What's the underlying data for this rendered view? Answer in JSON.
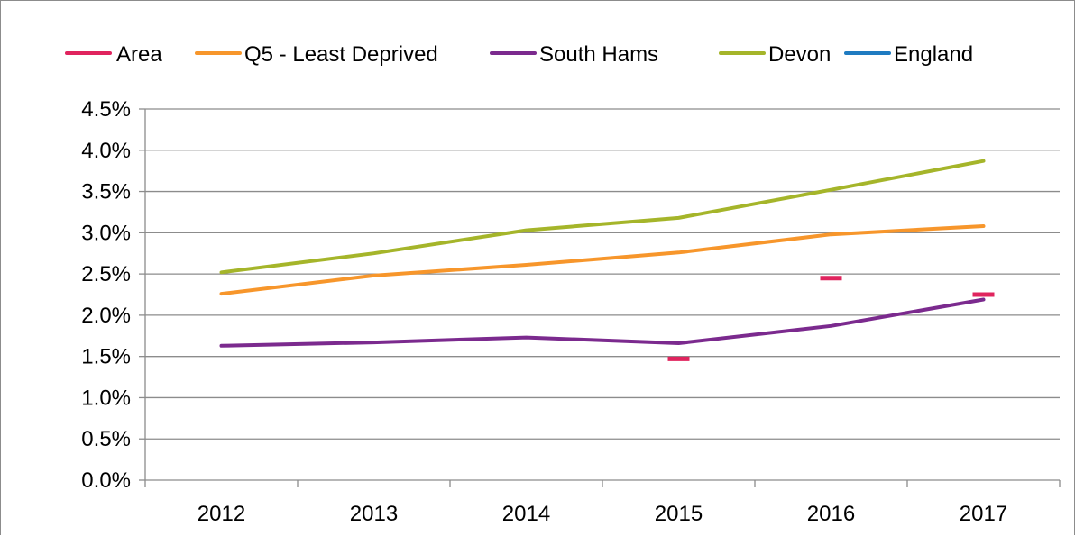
{
  "chart_data": {
    "type": "line",
    "categories": [
      "2012",
      "2013",
      "2014",
      "2015",
      "2016",
      "2017"
    ],
    "y_tick_labels": [
      "0.0%",
      "0.5%",
      "1.0%",
      "1.5%",
      "2.0%",
      "2.5%",
      "3.0%",
      "3.5%",
      "4.0%",
      "4.5%"
    ],
    "ylim": [
      0,
      4.5
    ],
    "y_unit": "%",
    "grid": true,
    "legend_position": "top",
    "series": [
      {
        "name": "Area",
        "color": "#e0245e",
        "marker": "dash",
        "values": [
          null,
          null,
          null,
          1.47,
          2.45,
          2.25
        ]
      },
      {
        "name": "Q5 - Least Deprived",
        "color": "#f7962b",
        "values": [
          2.26,
          2.48,
          2.61,
          2.76,
          2.98,
          3.08
        ]
      },
      {
        "name": "South Hams",
        "color": "#7b2a8e",
        "values": [
          1.63,
          1.67,
          1.73,
          1.66,
          1.87,
          2.19
        ]
      },
      {
        "name": "Devon",
        "color": "#a5b52a",
        "values": [
          2.52,
          2.75,
          3.03,
          3.18,
          3.52,
          3.87
        ]
      },
      {
        "name": "England",
        "color": "#1f7bc1",
        "values": [
          null,
          null,
          null,
          null,
          null,
          null
        ]
      }
    ]
  }
}
